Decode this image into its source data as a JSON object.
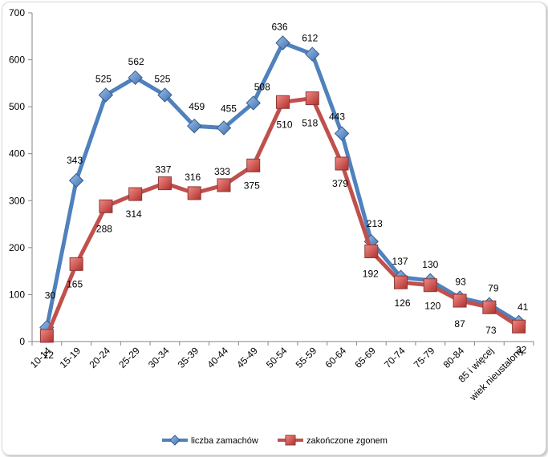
{
  "chart_data": {
    "type": "line",
    "title": "",
    "xlabel": "",
    "ylabel": "",
    "categories": [
      "10-14",
      "15-19",
      "20-24",
      "25-29",
      "30-34",
      "35-39",
      "40-44",
      "45-49",
      "50-54",
      "55-59",
      "60-64",
      "65-69",
      "70-74",
      "75-79",
      "80-84",
      "85 i więcej",
      "wiek nieustalony"
    ],
    "ylim": [
      0,
      700
    ],
    "yticks": [
      "0",
      "100",
      "200",
      "300",
      "400",
      "500",
      "600",
      "700"
    ],
    "grid": false,
    "legend_position": "bottom",
    "series": [
      {
        "name": "liczba zamachów",
        "color": "#4f81bd",
        "marker": "diamond",
        "values": [
          30,
          343,
          525,
          562,
          525,
          459,
          455,
          508,
          636,
          612,
          443,
          213,
          137,
          130,
          93,
          79,
          41
        ],
        "labels": [
          "30",
          "343",
          "525",
          "562",
          "525",
          "459",
          "455",
          "508",
          "636",
          "612",
          "443",
          "213",
          "137",
          "130",
          "93",
          "79",
          "41"
        ]
      },
      {
        "name": "zakończone zgonem",
        "color": "#c0504d",
        "marker": "square",
        "values": [
          12,
          165,
          288,
          314,
          337,
          316,
          333,
          375,
          510,
          518,
          379,
          192,
          126,
          120,
          87,
          73,
          32
        ],
        "labels": [
          "12",
          "165",
          "288",
          "314",
          "337",
          "316",
          "333",
          "375",
          "510",
          "518",
          "379",
          "192",
          "126",
          "120",
          "87",
          "73",
          "32"
        ]
      }
    ]
  }
}
